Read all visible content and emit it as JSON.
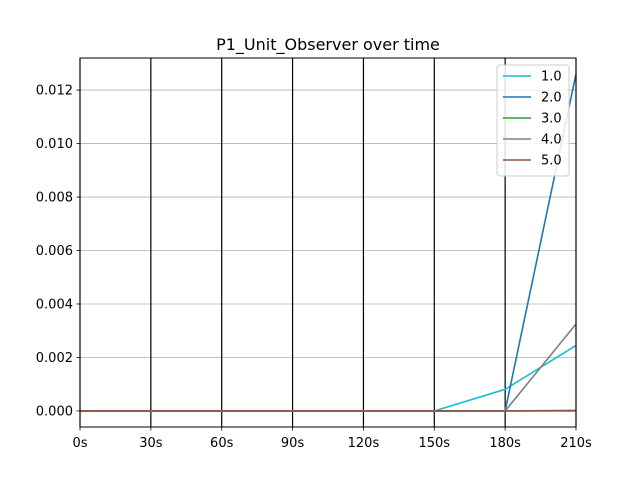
{
  "chart_data": {
    "type": "line",
    "title": "P1_Unit_Observer over time",
    "xlabel": "",
    "ylabel": "",
    "x": [
      0,
      30,
      60,
      90,
      120,
      150,
      180,
      210
    ],
    "x_tick_labels": [
      "0s",
      "30s",
      "60s",
      "90s",
      "120s",
      "150s",
      "180s",
      "210s"
    ],
    "xlim": [
      0,
      210
    ],
    "y_ticks": [
      0.0,
      0.002,
      0.004,
      0.006,
      0.008,
      0.01,
      0.012
    ],
    "y_tick_labels": [
      "0.000",
      "0.002",
      "0.004",
      "0.006",
      "0.008",
      "0.010",
      "0.012"
    ],
    "ylim": [
      -0.0006,
      0.0132
    ],
    "grid": "y-major gray, black vertical lines at x ticks",
    "legend_position": "top-right",
    "series": [
      {
        "name": "1.0",
        "color": "#17becf",
        "values": [
          0,
          0,
          0,
          0,
          0,
          0,
          0.00081,
          0.00245
        ]
      },
      {
        "name": "2.0",
        "color": "#1f77b4",
        "values": [
          0,
          0,
          0,
          0,
          0,
          0,
          0,
          0.0126
        ]
      },
      {
        "name": "3.0",
        "color": "#2ca02c",
        "values": [
          0,
          0,
          0,
          0,
          0,
          0,
          0,
          0
        ]
      },
      {
        "name": "4.0",
        "color": "#7f7f7f",
        "values": [
          0,
          0,
          0,
          0,
          0,
          0,
          0,
          0.00325
        ]
      },
      {
        "name": "5.0",
        "color": "#8c564b",
        "values": [
          0,
          0,
          0,
          0,
          0,
          0,
          0,
          2e-05
        ]
      }
    ]
  }
}
